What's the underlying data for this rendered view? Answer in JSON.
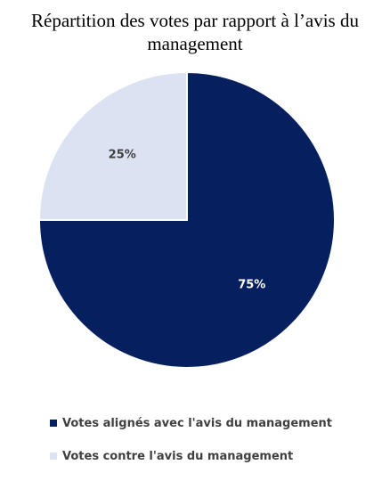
{
  "chart_data": {
    "type": "pie",
    "title_lines": [
      "Répartition des votes par rapport à l’avis du",
      "management"
    ],
    "slices": [
      {
        "name": "Votes alignés avec l'avis du management",
        "value": 75,
        "label": "75%",
        "color": "#06205f",
        "label_color": "#ffffff"
      },
      {
        "name": "Votes contre l'avis du management",
        "value": 25,
        "label": "25%",
        "color": "#dbe2f2",
        "label_color": "#3f3f3f"
      }
    ],
    "legend_position": "bottom"
  }
}
